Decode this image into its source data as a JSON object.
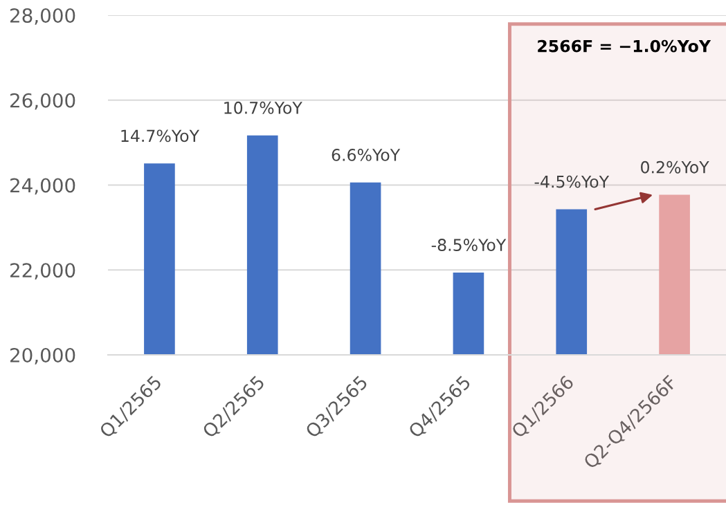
{
  "chart_data": {
    "type": "bar",
    "categories": [
      "Q1/2565",
      "Q2/2565",
      "Q3/2565",
      "Q4/2565",
      "Q1/2566",
      "Q2-Q4/2566F"
    ],
    "values": [
      24510,
      25170,
      24060,
      21940,
      23430,
      23770
    ],
    "colors": [
      "#4472c4",
      "#4472c4",
      "#4472c4",
      "#4472c4",
      "#4472c4",
      "#e6a3a3"
    ],
    "ylim": [
      20000,
      28000
    ],
    "yticks": [
      {
        "value": 20000,
        "label": "20,000"
      },
      {
        "value": 22000,
        "label": "22,000"
      },
      {
        "value": 24000,
        "label": "24,000"
      },
      {
        "value": 26000,
        "label": "26,000"
      },
      {
        "value": 28000,
        "label": "28,000"
      }
    ],
    "grid": "y",
    "bands": [
      {
        "axis": "x",
        "from": "Q1/2566",
        "to": "Q2-Q4/2566F",
        "label": "2566F = −1.0%YoY",
        "color": "#d99594"
      }
    ],
    "annotations": [
      {
        "text": "14.7%YoY",
        "x": "Q1/2565",
        "y": 24510
      },
      {
        "text": "10.7%YoY",
        "x": "Q2/2565",
        "y": 25170
      },
      {
        "text": "6.6%YoY",
        "x": "Q3/2565",
        "y": 24060
      },
      {
        "text": "-8.5%YoY",
        "x": "Q4/2565",
        "y": 21940
      },
      {
        "text": "-4.5%YoY",
        "x": "Q1/2566",
        "y": 23430
      },
      {
        "text": "0.2%YoY",
        "x": "Q2-Q4/2566F",
        "y": 23770
      }
    ]
  }
}
